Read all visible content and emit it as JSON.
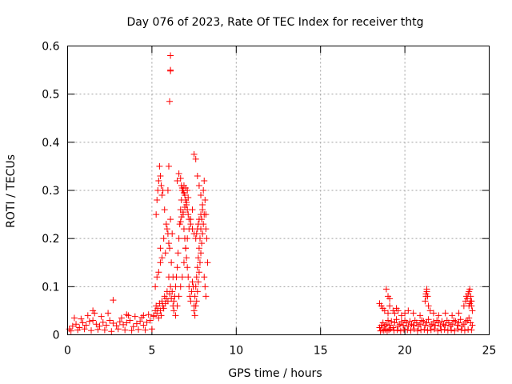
{
  "chart_data": {
    "type": "scatter",
    "title": "Day 076 of 2023, Rate Of TEC Index for receiver thtg",
    "xlabel": "GPS time / hours",
    "ylabel": "ROTI / TECUs",
    "xlim": [
      0,
      25
    ],
    "ylim": [
      0,
      0.6
    ],
    "xticks": [
      0,
      5,
      10,
      15,
      20,
      25
    ],
    "yticks": [
      0,
      0.1,
      0.2,
      0.3,
      0.4,
      0.5,
      0.6
    ],
    "xtick_labels": [
      "0",
      "5",
      "10",
      "15",
      "20",
      "25"
    ],
    "ytick_labels": [
      "0",
      "0.1",
      "0.2",
      "0.3",
      "0.4",
      "0.5",
      "0.6"
    ],
    "grid": true,
    "marker": "+",
    "color": "#ff0000",
    "series": [
      {
        "x": [
          0.1,
          0.3,
          0.5,
          0.7,
          0.9,
          1.1,
          1.3,
          1.5,
          1.7,
          1.9,
          2.1,
          2.3,
          2.5,
          2.7,
          2.9,
          3.1,
          3.3,
          3.5,
          3.7,
          3.9,
          4.1,
          4.3,
          4.5,
          4.7,
          4.9,
          0.2,
          0.6,
          1.0,
          1.4,
          1.8,
          2.2,
          2.6,
          3.0,
          3.4,
          3.8,
          4.2,
          4.6,
          5.0,
          0.4,
          1.2,
          1.6,
          2.0,
          2.7,
          3.2,
          3.6,
          4.0,
          4.4,
          4.8,
          0.8,
          1.5,
          2.4,
          3.5,
          4.5,
          5.1,
          5.1,
          5.2,
          5.25,
          5.3,
          5.35,
          5.4,
          5.45,
          5.5,
          5.55,
          5.6,
          5.65,
          5.7,
          5.75,
          5.8,
          5.85,
          5.9,
          5.95,
          6.0,
          6.05,
          6.1,
          6.15,
          6.2,
          6.25,
          6.3,
          5.2,
          5.3,
          5.4,
          5.5,
          5.6,
          5.8,
          6.0,
          6.2,
          5.5,
          5.7,
          5.9,
          6.1,
          5.25,
          5.3,
          5.35,
          5.4,
          5.45,
          5.5,
          5.55,
          5.6,
          5.65,
          5.75,
          5.85,
          5.95,
          6.05,
          6.15,
          6.25,
          6.1,
          6.1,
          6.1,
          6.05,
          6.0,
          5.95,
          6.3,
          6.35,
          6.4,
          6.45,
          6.5,
          6.55,
          6.6,
          6.65,
          6.7,
          6.75,
          6.8,
          6.85,
          6.9,
          6.95,
          7.0,
          7.05,
          7.1,
          7.15,
          7.2,
          7.25,
          7.3,
          7.35,
          7.4,
          7.45,
          7.5,
          6.4,
          6.5,
          6.6,
          6.7,
          6.8,
          6.9,
          7.0,
          7.1,
          7.2,
          7.3,
          7.4,
          6.5,
          6.6,
          6.7,
          6.75,
          6.8,
          6.85,
          6.9,
          6.95,
          7.0,
          7.05,
          7.1,
          7.15,
          7.2,
          7.3,
          7.4,
          7.5,
          6.8,
          6.9,
          7.0,
          7.1,
          6.7,
          6.75,
          6.85,
          6.95,
          7.05,
          7.15,
          7.5,
          7.55,
          7.6,
          7.65,
          7.7,
          7.75,
          7.8,
          7.85,
          7.9,
          7.95,
          8.0,
          8.05,
          8.1,
          8.15,
          8.2,
          8.25,
          8.3,
          7.5,
          7.6,
          7.7,
          7.8,
          7.9,
          8.0,
          8.1,
          8.2,
          7.55,
          7.6,
          7.65,
          7.7,
          7.75,
          7.8,
          7.85,
          7.9,
          7.95,
          8.0,
          8.05,
          8.1,
          8.15,
          8.2,
          7.6,
          7.65,
          7.7,
          7.75,
          7.8,
          7.9,
          18.5,
          18.6,
          18.7,
          18.8,
          18.9,
          19.0,
          19.1,
          19.2,
          19.3,
          19.4,
          19.5,
          19.6,
          19.7,
          19.8,
          19.9,
          20.0,
          20.1,
          20.2,
          20.3,
          20.4,
          20.5,
          20.6,
          20.7,
          20.8,
          20.9,
          21.0,
          21.1,
          21.2,
          21.3,
          21.4,
          21.5,
          21.6,
          21.7,
          21.8,
          21.9,
          22.0,
          22.1,
          22.2,
          22.3,
          22.4,
          22.5,
          22.6,
          22.7,
          22.8,
          22.9,
          23.0,
          23.1,
          23.2,
          23.3,
          23.4,
          23.5,
          23.6,
          23.7,
          23.8,
          23.9,
          24.0,
          18.55,
          18.65,
          18.75,
          18.85,
          18.95,
          19.05,
          19.15,
          19.35,
          19.55,
          19.75,
          19.95,
          20.15,
          20.35,
          20.55,
          20.75,
          20.95,
          21.15,
          21.35,
          21.55,
          21.75,
          21.95,
          22.15,
          22.35,
          22.55,
          22.75,
          22.95,
          23.15,
          23.35,
          23.55,
          23.75,
          23.95,
          18.5,
          18.6,
          18.7,
          18.8,
          19.0,
          19.1,
          19.3,
          19.4,
          19.5,
          19.6,
          19.8,
          20.0,
          20.2,
          20.5,
          20.9,
          21.2,
          21.25,
          21.3,
          21.35,
          21.4,
          21.5,
          21.7,
          22.0,
          22.4,
          22.8,
          23.2,
          23.5,
          23.6,
          23.65,
          23.7,
          23.75,
          23.8,
          23.85,
          23.9,
          23.95,
          18.9,
          19.0,
          19.1,
          21.25,
          21.3,
          23.8,
          23.85,
          23.9,
          23.95,
          24.0
        ],
        "y": [
          0.012,
          0.018,
          0.022,
          0.015,
          0.025,
          0.02,
          0.028,
          0.03,
          0.022,
          0.018,
          0.026,
          0.02,
          0.03,
          0.024,
          0.019,
          0.027,
          0.021,
          0.025,
          0.03,
          0.017,
          0.023,
          0.028,
          0.02,
          0.026,
          0.03,
          0.008,
          0.01,
          0.012,
          0.009,
          0.011,
          0.01,
          0.007,
          0.012,
          0.01,
          0.009,
          0.011,
          0.01,
          0.012,
          0.035,
          0.04,
          0.045,
          0.038,
          0.072,
          0.035,
          0.04,
          0.038,
          0.036,
          0.042,
          0.033,
          0.05,
          0.045,
          0.042,
          0.04,
          0.038,
          0.04,
          0.05,
          0.06,
          0.045,
          0.055,
          0.035,
          0.065,
          0.05,
          0.04,
          0.07,
          0.06,
          0.055,
          0.08,
          0.065,
          0.075,
          0.09,
          0.07,
          0.12,
          0.085,
          0.1,
          0.075,
          0.09,
          0.06,
          0.07,
          0.1,
          0.12,
          0.13,
          0.15,
          0.16,
          0.17,
          0.19,
          0.21,
          0.18,
          0.2,
          0.22,
          0.24,
          0.25,
          0.28,
          0.3,
          0.32,
          0.35,
          0.33,
          0.31,
          0.29,
          0.3,
          0.26,
          0.23,
          0.21,
          0.18,
          0.15,
          0.12,
          0.58,
          0.55,
          0.548,
          0.485,
          0.35,
          0.3,
          0.05,
          0.08,
          0.1,
          0.12,
          0.14,
          0.17,
          0.2,
          0.23,
          0.26,
          0.28,
          0.3,
          0.25,
          0.22,
          0.2,
          0.18,
          0.16,
          0.14,
          0.12,
          0.1,
          0.08,
          0.07,
          0.09,
          0.11,
          0.1,
          0.06,
          0.04,
          0.06,
          0.08,
          0.1,
          0.12,
          0.15,
          0.18,
          0.2,
          0.22,
          0.24,
          0.26,
          0.32,
          0.335,
          0.325,
          0.31,
          0.305,
          0.3,
          0.295,
          0.29,
          0.28,
          0.27,
          0.26,
          0.25,
          0.24,
          0.23,
          0.22,
          0.21,
          0.3,
          0.31,
          0.305,
          0.3,
          0.235,
          0.245,
          0.255,
          0.265,
          0.275,
          0.285,
          0.05,
          0.08,
          0.1,
          0.12,
          0.14,
          0.16,
          0.18,
          0.2,
          0.22,
          0.24,
          0.26,
          0.3,
          0.32,
          0.28,
          0.25,
          0.2,
          0.15,
          0.375,
          0.365,
          0.33,
          0.31,
          0.29,
          0.27,
          0.25,
          0.22,
          0.04,
          0.06,
          0.07,
          0.09,
          0.11,
          0.13,
          0.15,
          0.17,
          0.19,
          0.21,
          0.23,
          0.12,
          0.1,
          0.08,
          0.2,
          0.21,
          0.22,
          0.23,
          0.24,
          0.25,
          0.015,
          0.02,
          0.025,
          0.018,
          0.022,
          0.03,
          0.02,
          0.028,
          0.015,
          0.025,
          0.032,
          0.018,
          0.022,
          0.027,
          0.02,
          0.03,
          0.025,
          0.018,
          0.028,
          0.022,
          0.02,
          0.03,
          0.025,
          0.018,
          0.022,
          0.03,
          0.028,
          0.02,
          0.025,
          0.032,
          0.018,
          0.022,
          0.027,
          0.02,
          0.03,
          0.025,
          0.018,
          0.028,
          0.022,
          0.02,
          0.03,
          0.025,
          0.018,
          0.022,
          0.03,
          0.028,
          0.02,
          0.025,
          0.032,
          0.018,
          0.022,
          0.027,
          0.03,
          0.035,
          0.025,
          0.02,
          0.008,
          0.01,
          0.009,
          0.011,
          0.008,
          0.01,
          0.012,
          0.009,
          0.01,
          0.008,
          0.011,
          0.01,
          0.009,
          0.012,
          0.008,
          0.01,
          0.011,
          0.009,
          0.01,
          0.012,
          0.008,
          0.01,
          0.011,
          0.009,
          0.01,
          0.008,
          0.012,
          0.01,
          0.009,
          0.011,
          0.01,
          0.065,
          0.06,
          0.055,
          0.05,
          0.045,
          0.06,
          0.05,
          0.045,
          0.055,
          0.05,
          0.04,
          0.045,
          0.05,
          0.045,
          0.04,
          0.07,
          0.085,
          0.095,
          0.08,
          0.06,
          0.05,
          0.045,
          0.04,
          0.045,
          0.04,
          0.045,
          0.06,
          0.07,
          0.08,
          0.075,
          0.085,
          0.09,
          0.095,
          0.08,
          0.07,
          0.095,
          0.08,
          0.075,
          0.08,
          0.09,
          0.06,
          0.065,
          0.07,
          0.06,
          0.05
        ]
      }
    ]
  }
}
